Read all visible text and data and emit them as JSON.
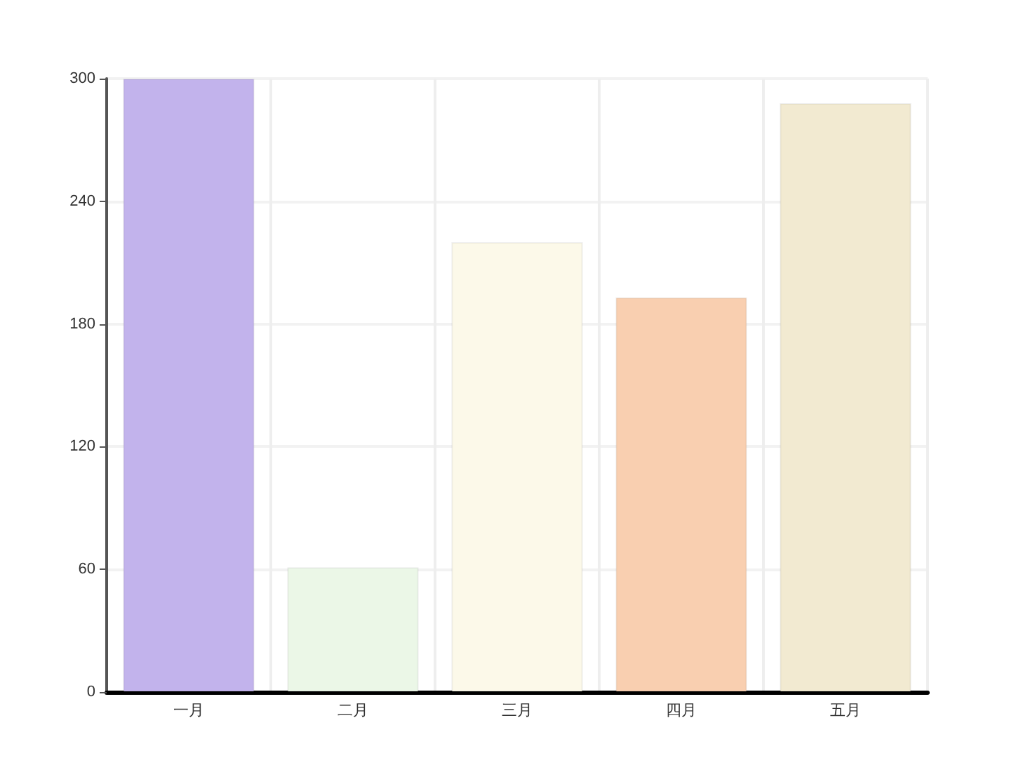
{
  "chart_data": {
    "type": "bar",
    "categories": [
      "一月",
      "二月",
      "三月",
      "四月",
      "五月"
    ],
    "values": [
      300,
      61,
      220,
      193,
      288
    ],
    "colors": [
      "#c2b3ec",
      "#ebf7e7",
      "#fcf9e9",
      "#f9cfb0",
      "#f2ead1"
    ],
    "ylim": [
      0,
      300
    ],
    "yticks": [
      0,
      60,
      120,
      180,
      240,
      300
    ],
    "grid": true
  }
}
